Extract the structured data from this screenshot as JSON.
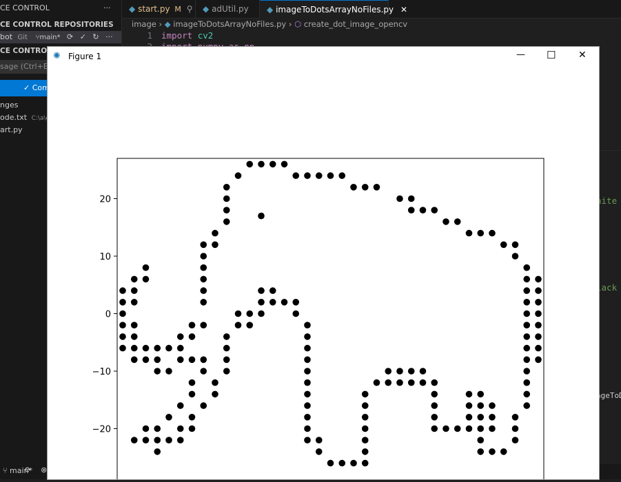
{
  "sidebar": {
    "header": "CE CONTROL",
    "header_more": "···",
    "repos_title": "CE CONTROL REPOSITORIES",
    "repo_name": "bot",
    "repo_type": "Git",
    "repo_branch": "main*",
    "section_title": "CE CONTROL",
    "message_placeholder": "sage (Ctrl+Ente",
    "commit_label": "Com",
    "changes_label": "nges",
    "files": [
      {
        "name": "ode.txt",
        "path": "C:\\a\\diy"
      },
      {
        "name": "art.py",
        "path": ""
      }
    ]
  },
  "tabs": [
    {
      "label": "start.py",
      "badge": "M"
    },
    {
      "label": "adUtil.py",
      "badge": ""
    },
    {
      "label": "imageToDotsArrayNoFiles.py",
      "badge": ""
    }
  ],
  "breadcrumb": {
    "folder": "image",
    "file": "imageToDotsArrayNoFiles.py",
    "symbol": "create_dot_image_opencv"
  },
  "code": {
    "line1_num": "1",
    "line2_num": "2",
    "line1_kw": "import",
    "line1_mod": "cv2",
    "line2_text": "import numpy as np"
  },
  "editor_fragments": {
    "white": "hite",
    "black": "lack",
    "ageToDo": "ageToDo"
  },
  "status": {
    "branch": "main*"
  },
  "figure": {
    "title": "Figure 1",
    "minimize": "—",
    "maximize": "☐",
    "close": "✕"
  },
  "colors": {
    "accent": "#0078d4",
    "dot": "#000000",
    "keyword": "#c586c0",
    "module": "#4ec9b0",
    "tab_modified": "#e2c08d"
  },
  "chart_data": {
    "type": "scatter",
    "title": "",
    "xlabel": "",
    "ylabel": "",
    "ylim": [
      -27,
      27
    ],
    "xlim": [
      0,
      37
    ],
    "y_ticks": [
      20,
      10,
      0,
      -10,
      -20
    ],
    "y_tick_labels": [
      "20",
      "10",
      "0",
      "−10",
      "−20"
    ],
    "x_ticks": [
      3.5,
      8.5,
      13.5,
      18.5,
      23.5,
      28.5,
      33.5
    ],
    "series": [
      {
        "name": "dots",
        "marker": "o",
        "color": "#000000",
        "points": [
          [
            11,
            26
          ],
          [
            12,
            26
          ],
          [
            13,
            26
          ],
          [
            14,
            26
          ],
          [
            10,
            24
          ],
          [
            15,
            24
          ],
          [
            16,
            24
          ],
          [
            17,
            24
          ],
          [
            18,
            24
          ],
          [
            19,
            24
          ],
          [
            9,
            22
          ],
          [
            20,
            22
          ],
          [
            21,
            22
          ],
          [
            22,
            22
          ],
          [
            9,
            20
          ],
          [
            24,
            20
          ],
          [
            25,
            20
          ],
          [
            9,
            18
          ],
          [
            25,
            18
          ],
          [
            26,
            18
          ],
          [
            27,
            18
          ],
          [
            12,
            17
          ],
          [
            9,
            16
          ],
          [
            28,
            16
          ],
          [
            29,
            16
          ],
          [
            8,
            14
          ],
          [
            30,
            14
          ],
          [
            31,
            14
          ],
          [
            32,
            14
          ],
          [
            7,
            12
          ],
          [
            8,
            12
          ],
          [
            33,
            12
          ],
          [
            34,
            12
          ],
          [
            7,
            10
          ],
          [
            34,
            10
          ],
          [
            2,
            8
          ],
          [
            7,
            8
          ],
          [
            35,
            8
          ],
          [
            1,
            6
          ],
          [
            2,
            6
          ],
          [
            7,
            6
          ],
          [
            35,
            6
          ],
          [
            36,
            6
          ],
          [
            0,
            4
          ],
          [
            1,
            4
          ],
          [
            7,
            4
          ],
          [
            12,
            4
          ],
          [
            13,
            4
          ],
          [
            35,
            4
          ],
          [
            36,
            4
          ],
          [
            0,
            2
          ],
          [
            1,
            2
          ],
          [
            7,
            2
          ],
          [
            12,
            2
          ],
          [
            13,
            2
          ],
          [
            14,
            2
          ],
          [
            15,
            2
          ],
          [
            35,
            2
          ],
          [
            36,
            2
          ],
          [
            0,
            0
          ],
          [
            10,
            0
          ],
          [
            11,
            0
          ],
          [
            12,
            0
          ],
          [
            15,
            0
          ],
          [
            35,
            0
          ],
          [
            36,
            0
          ],
          [
            0,
            -2
          ],
          [
            1,
            -2
          ],
          [
            6,
            -2
          ],
          [
            7,
            -2
          ],
          [
            10,
            -2
          ],
          [
            11,
            -2
          ],
          [
            16,
            -2
          ],
          [
            35,
            -2
          ],
          [
            36,
            -2
          ],
          [
            0,
            -4
          ],
          [
            1,
            -4
          ],
          [
            5,
            -4
          ],
          [
            6,
            -4
          ],
          [
            9,
            -4
          ],
          [
            16,
            -4
          ],
          [
            35,
            -4
          ],
          [
            36,
            -4
          ],
          [
            0,
            -6
          ],
          [
            1,
            -6
          ],
          [
            2,
            -6
          ],
          [
            3,
            -6
          ],
          [
            4,
            -6
          ],
          [
            5,
            -6
          ],
          [
            9,
            -6
          ],
          [
            16,
            -6
          ],
          [
            35,
            -6
          ],
          [
            36,
            -6
          ],
          [
            1,
            -8
          ],
          [
            2,
            -8
          ],
          [
            3,
            -8
          ],
          [
            5,
            -8
          ],
          [
            6,
            -8
          ],
          [
            7,
            -8
          ],
          [
            9,
            -8
          ],
          [
            16,
            -8
          ],
          [
            35,
            -8
          ],
          [
            36,
            -8
          ],
          [
            3,
            -10
          ],
          [
            4,
            -10
          ],
          [
            7,
            -10
          ],
          [
            9,
            -10
          ],
          [
            16,
            -10
          ],
          [
            23,
            -10
          ],
          [
            24,
            -10
          ],
          [
            25,
            -10
          ],
          [
            26,
            -10
          ],
          [
            35,
            -10
          ],
          [
            6,
            -12
          ],
          [
            8,
            -12
          ],
          [
            16,
            -12
          ],
          [
            22,
            -12
          ],
          [
            23,
            -12
          ],
          [
            24,
            -12
          ],
          [
            25,
            -12
          ],
          [
            26,
            -12
          ],
          [
            27,
            -12
          ],
          [
            35,
            -12
          ],
          [
            6,
            -14
          ],
          [
            8,
            -14
          ],
          [
            16,
            -14
          ],
          [
            21,
            -14
          ],
          [
            27,
            -14
          ],
          [
            30,
            -14
          ],
          [
            31,
            -14
          ],
          [
            35,
            -14
          ],
          [
            5,
            -16
          ],
          [
            7,
            -16
          ],
          [
            16,
            -16
          ],
          [
            21,
            -16
          ],
          [
            27,
            -16
          ],
          [
            30,
            -16
          ],
          [
            31,
            -16
          ],
          [
            32,
            -16
          ],
          [
            35,
            -16
          ],
          [
            4,
            -18
          ],
          [
            6,
            -18
          ],
          [
            16,
            -18
          ],
          [
            21,
            -18
          ],
          [
            27,
            -18
          ],
          [
            30,
            -18
          ],
          [
            31,
            -18
          ],
          [
            32,
            -18
          ],
          [
            34,
            -18
          ],
          [
            2,
            -20
          ],
          [
            3,
            -20
          ],
          [
            5,
            -20
          ],
          [
            6,
            -20
          ],
          [
            16,
            -20
          ],
          [
            21,
            -20
          ],
          [
            27,
            -20
          ],
          [
            28,
            -20
          ],
          [
            29,
            -20
          ],
          [
            30,
            -20
          ],
          [
            31,
            -20
          ],
          [
            32,
            -20
          ],
          [
            34,
            -20
          ],
          [
            1,
            -22
          ],
          [
            2,
            -22
          ],
          [
            3,
            -22
          ],
          [
            4,
            -22
          ],
          [
            5,
            -22
          ],
          [
            16,
            -22
          ],
          [
            17,
            -22
          ],
          [
            21,
            -22
          ],
          [
            31,
            -22
          ],
          [
            34,
            -22
          ],
          [
            3,
            -24
          ],
          [
            17,
            -24
          ],
          [
            21,
            -24
          ],
          [
            31,
            -24
          ],
          [
            32,
            -24
          ],
          [
            33,
            -24
          ],
          [
            18,
            -26
          ],
          [
            19,
            -26
          ],
          [
            20,
            -26
          ],
          [
            21,
            -26
          ]
        ]
      }
    ]
  }
}
